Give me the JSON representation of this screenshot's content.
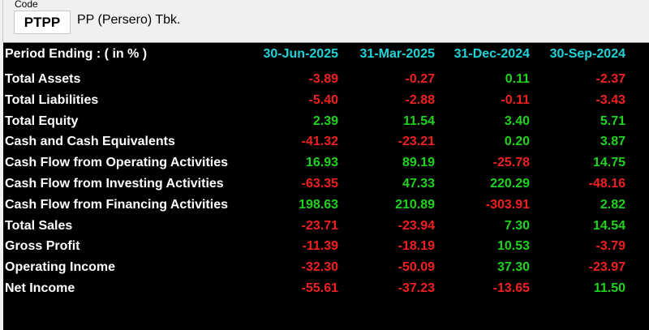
{
  "header": {
    "code_label": "Code",
    "code": "PTPP",
    "company": "PP (Persero) Tbk."
  },
  "table": {
    "title": "Period Ending :   ( in % )",
    "periods": [
      "30-Jun-2025",
      "31-Mar-2025",
      "31-Dec-2024",
      "30-Sep-2024"
    ],
    "rows": [
      {
        "label": "Total Assets",
        "values": [
          "-3.89",
          "-0.27",
          "0.11",
          "-2.37"
        ]
      },
      {
        "label": "Total Liabilities",
        "values": [
          "-5.40",
          "-2.88",
          "-0.11",
          "-3.43"
        ]
      },
      {
        "label": "Total Equity",
        "values": [
          "2.39",
          "11.54",
          "3.40",
          "5.71"
        ]
      },
      {
        "label": "Cash and Cash Equivalents",
        "values": [
          "-41.32",
          "-23.21",
          "0.20",
          "3.87"
        ]
      },
      {
        "label": "Cash Flow from Operating Activities",
        "values": [
          "16.93",
          "89.19",
          "-25.78",
          "14.75"
        ]
      },
      {
        "label": "Cash Flow from Investing Activities",
        "values": [
          "-63.35",
          "47.33",
          "220.29",
          "-48.16"
        ]
      },
      {
        "label": "Cash Flow from Financing Activities",
        "values": [
          "198.63",
          "210.89",
          "-303.91",
          "2.82"
        ]
      },
      {
        "label": "Total Sales",
        "values": [
          "-23.71",
          "-23.94",
          "7.30",
          "14.54"
        ]
      },
      {
        "label": "Gross Profit",
        "values": [
          "-11.39",
          "-18.19",
          "10.53",
          "-3.79"
        ]
      },
      {
        "label": "Operating Income",
        "values": [
          "-32.30",
          "-50.09",
          "37.30",
          "-23.97"
        ]
      },
      {
        "label": "Net Income",
        "values": [
          "-55.61",
          "-37.23",
          "-13.65",
          "11.50"
        ]
      }
    ]
  },
  "colors": {
    "positive": "#1fd31f",
    "negative": "#f02020",
    "period_header": "#1ed3d8",
    "background": "#000000"
  }
}
